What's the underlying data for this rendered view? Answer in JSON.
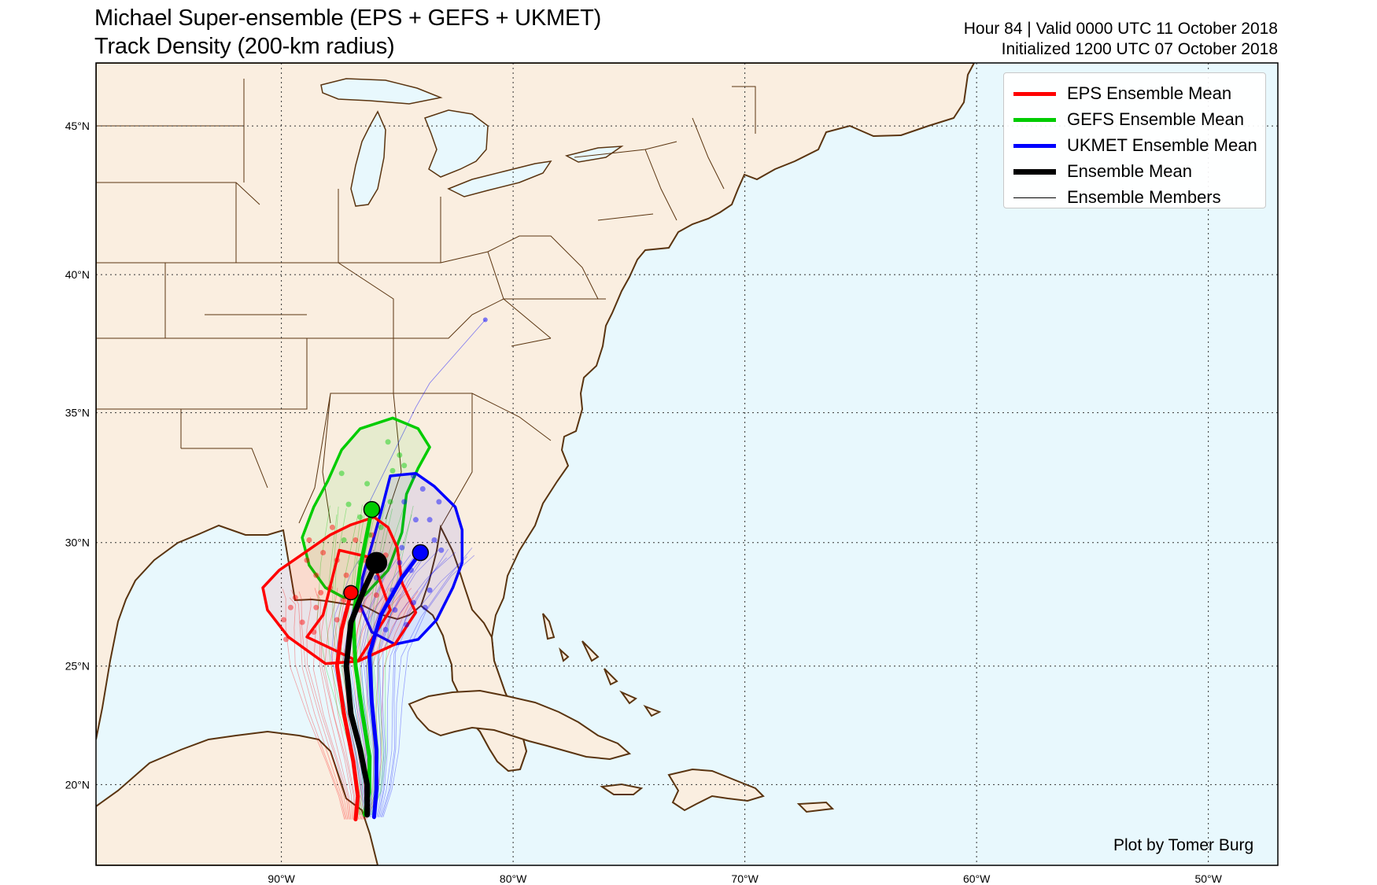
{
  "title": {
    "line1": "Michael Super-ensemble (EPS + GEFS + UKMET)",
    "line2": "Track Density (200-km radius)"
  },
  "meta": {
    "line1": "Hour 84 | Valid 0000 UTC 11 October 2018",
    "line2": "Initialized 1200 UTC 07 October 2018"
  },
  "credit": "Plot by Tomer Burg",
  "axes": {
    "lat_labels": [
      "45°N",
      "40°N",
      "35°N",
      "30°N",
      "25°N",
      "20°N"
    ],
    "lon_labels": [
      "90°W",
      "80°W",
      "70°W",
      "60°W",
      "50°W"
    ],
    "lat_ticks": [
      45,
      40,
      35,
      30,
      25,
      20
    ],
    "lon_ticks": [
      -90,
      -80,
      -70,
      -60,
      -50
    ],
    "lat_range": [
      16.5,
      47
    ],
    "lon_range": [
      -98,
      -47
    ],
    "projection": "Mercator",
    "grid": true
  },
  "legend": {
    "placement": "top-right",
    "items": [
      {
        "label": "EPS Ensemble Mean",
        "color": "#ff0000",
        "style": "thick"
      },
      {
        "label": "GEFS Ensemble Mean",
        "color": "#00cc00",
        "style": "thick"
      },
      {
        "label": "UKMET Ensemble Mean",
        "color": "#0000ff",
        "style": "thick"
      },
      {
        "label": "Ensemble Mean",
        "color": "#000000",
        "style": "thick"
      },
      {
        "label": "Ensemble Members",
        "color": "#000000",
        "style": "thin"
      }
    ]
  },
  "colors": {
    "land": "#faeee0",
    "ocean": "#e8f8fd",
    "coast": "#5a3410",
    "eps": "#ff0000",
    "gefs": "#00cc00",
    "ukmet": "#0000ff",
    "mean": "#000000"
  },
  "tracks": {
    "eps_mean": [
      [
        -86.8,
        18.5
      ],
      [
        -86.7,
        19.5
      ],
      [
        -86.9,
        21
      ],
      [
        -87.3,
        23
      ],
      [
        -87.6,
        25
      ],
      [
        -87.4,
        26.5
      ],
      [
        -87.1,
        27.6
      ],
      [
        -87.0,
        28.0
      ]
    ],
    "gefs_mean": [
      [
        -86.4,
        18.7
      ],
      [
        -86.2,
        19.7
      ],
      [
        -86.2,
        21.2
      ],
      [
        -86.5,
        23
      ],
      [
        -86.8,
        25
      ],
      [
        -86.9,
        26.9
      ],
      [
        -86.6,
        29
      ],
      [
        -86.1,
        31.3
      ]
    ],
    "ukmet_mean": [
      [
        -86.0,
        18.6
      ],
      [
        -85.9,
        19.8
      ],
      [
        -85.9,
        21.5
      ],
      [
        -86.1,
        23.5
      ],
      [
        -86.2,
        25.5
      ],
      [
        -85.7,
        27.1
      ],
      [
        -84.8,
        28.6
      ],
      [
        -84.0,
        29.6
      ]
    ],
    "ens_mean": [
      [
        -86.3,
        18.7
      ],
      [
        -86.3,
        20
      ],
      [
        -86.6,
        21.5
      ],
      [
        -87.0,
        23
      ],
      [
        -87.2,
        25
      ],
      [
        -87.0,
        26.8
      ],
      [
        -86.4,
        28.2
      ],
      [
        -85.9,
        29.2
      ]
    ]
  },
  "end_points": {
    "eps": [
      -87.0,
      28.0
    ],
    "gefs": [
      -86.1,
      31.3
    ],
    "ukmet": [
      -84.0,
      29.6
    ],
    "mean": [
      -85.9,
      29.2
    ]
  },
  "density_contours": {
    "eps": [
      [
        -88.9,
        26.2
      ],
      [
        -88.2,
        27.1
      ],
      [
        -87.5,
        29.7
      ],
      [
        -86.1,
        29.4
      ],
      [
        -85.3,
        27.3
      ],
      [
        -86.7,
        25.2
      ],
      [
        -88.1,
        25.1
      ],
      [
        -89.7,
        26.2
      ],
      [
        -90.6,
        27.3
      ],
      [
        -90.8,
        28.2
      ],
      [
        -90.1,
        28.9
      ],
      [
        -89.0,
        29.6
      ],
      [
        -87.9,
        30.3
      ],
      [
        -87.0,
        30.7
      ],
      [
        -86.0,
        31.0
      ],
      [
        -85.4,
        30.6
      ],
      [
        -85.0,
        29.8
      ],
      [
        -84.8,
        28.4
      ],
      [
        -84.2,
        27.2
      ],
      [
        -85.1,
        25.9
      ],
      [
        -86.7,
        25.2
      ]
    ],
    "gefs": [
      [
        -86.6,
        34.4
      ],
      [
        -85.2,
        34.8
      ],
      [
        -84.1,
        34.4
      ],
      [
        -83.6,
        33.7
      ],
      [
        -84.1,
        32.9
      ],
      [
        -84.6,
        31.9
      ],
      [
        -84.8,
        30.4
      ],
      [
        -85.4,
        28.9
      ],
      [
        -86.4,
        27.9
      ],
      [
        -87.3,
        27.8
      ],
      [
        -88.1,
        28.2
      ],
      [
        -88.8,
        29.1
      ],
      [
        -89.1,
        30.2
      ],
      [
        -88.6,
        31.4
      ],
      [
        -88.0,
        32.4
      ],
      [
        -87.4,
        33.6
      ]
    ],
    "ukmet": [
      [
        -85.3,
        32.6
      ],
      [
        -84.2,
        32.7
      ],
      [
        -83.4,
        32.2
      ],
      [
        -82.5,
        31.4
      ],
      [
        -82.2,
        30.5
      ],
      [
        -82.2,
        29.2
      ],
      [
        -82.6,
        28.2
      ],
      [
        -83.3,
        26.9
      ],
      [
        -84.1,
        26.1
      ],
      [
        -85.1,
        25.9
      ],
      [
        -86.1,
        26.4
      ],
      [
        -86.6,
        27.5
      ],
      [
        -86.5,
        28.6
      ],
      [
        -86.1,
        29.9
      ],
      [
        -85.7,
        31.2
      ]
    ]
  },
  "member_points": {
    "eps": [
      [
        -89.4,
        27.8
      ],
      [
        -89.6,
        27.4
      ],
      [
        -89.9,
        26.9
      ],
      [
        -89.1,
        26.8
      ],
      [
        -88.5,
        27.4
      ],
      [
        -88.3,
        28.0
      ],
      [
        -88.5,
        28.7
      ],
      [
        -88.9,
        29.3
      ],
      [
        -88.2,
        29.6
      ],
      [
        -87.6,
        29.3
      ],
      [
        -87.2,
        28.7
      ],
      [
        -87.3,
        27.7
      ],
      [
        -88.6,
        26.4
      ],
      [
        -87.6,
        26.9
      ],
      [
        -86.6,
        27.3
      ],
      [
        -85.9,
        27.9
      ],
      [
        -86.4,
        29.3
      ],
      [
        -86.8,
        30.1
      ],
      [
        -87.8,
        30.6
      ],
      [
        -88.8,
        30.1
      ],
      [
        -86.1,
        30.3
      ],
      [
        -85.5,
        29.5
      ],
      [
        -89.8,
        26.1
      ],
      [
        -87.9,
        28.2
      ]
    ],
    "gefs": [
      [
        -87.4,
        32.7
      ],
      [
        -86.3,
        32.3
      ],
      [
        -85.2,
        32.8
      ],
      [
        -84.9,
        33.4
      ],
      [
        -85.4,
        33.9
      ],
      [
        -84.7,
        33.0
      ],
      [
        -86.6,
        31.0
      ],
      [
        -87.1,
        31.5
      ],
      [
        -86.2,
        30.3
      ],
      [
        -85.7,
        30.6
      ],
      [
        -85.3,
        31.6
      ],
      [
        -86.6,
        29.2
      ],
      [
        -87.3,
        30.1
      ]
    ],
    "ukmet": [
      [
        -84.3,
        32.6
      ],
      [
        -83.9,
        32.1
      ],
      [
        -84.7,
        31.6
      ],
      [
        -84.2,
        30.9
      ],
      [
        -83.6,
        30.9
      ],
      [
        -83.4,
        30.1
      ],
      [
        -84.8,
        29.8
      ],
      [
        -83.9,
        29.4
      ],
      [
        -83.1,
        29.7
      ],
      [
        -84.4,
        28.9
      ],
      [
        -83.6,
        28.1
      ],
      [
        -84.3,
        27.6
      ],
      [
        -85.1,
        27.3
      ],
      [
        -84.6,
        26.7
      ],
      [
        -85.5,
        26.5
      ],
      [
        -83.8,
        27.4
      ],
      [
        -85.2,
        28.1
      ],
      [
        -85.9,
        28.6
      ],
      [
        -84.9,
        29.2
      ],
      [
        -83.2,
        31.6
      ]
    ]
  },
  "remote_member": [
    [
      -86.3,
      31.4
    ],
    [
      -84.2,
      35.2
    ],
    [
      -83.6,
      36.1
    ],
    [
      -81.2,
      38.4
    ]
  ]
}
